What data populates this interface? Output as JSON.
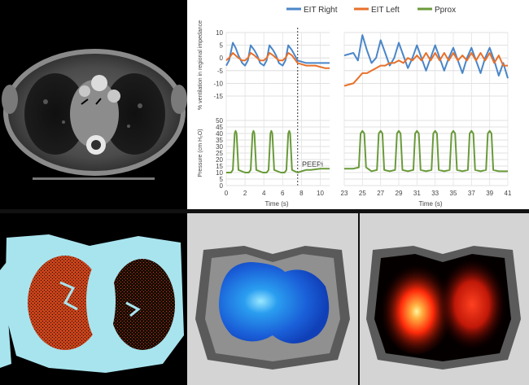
{
  "chart_data": [
    {
      "type": "line",
      "panel": "top-left",
      "ylabel": "% ventilation in regional impedance",
      "ylim": [
        -15,
        10
      ],
      "yticks": [
        -15,
        -10,
        -5,
        0,
        5,
        10
      ],
      "xlim": [
        0,
        11
      ],
      "vertical_line_x": 7.6,
      "series": [
        {
          "name": "EIT Right",
          "color": "#4a86c8",
          "x": [
            0,
            0.3,
            0.7,
            1.0,
            1.3,
            1.7,
            2.0,
            2.3,
            2.6,
            3.0,
            3.3,
            3.6,
            4.0,
            4.3,
            4.6,
            5.0,
            5.3,
            5.6,
            6.0,
            6.3,
            6.6,
            7.0,
            7.6,
            8.5,
            9.5,
            10.5,
            11.0
          ],
          "y": [
            -3,
            -1,
            6,
            4,
            1,
            -2,
            -3,
            -1,
            5,
            3,
            1,
            -2,
            -3,
            -1,
            5,
            3,
            1,
            -2,
            -3,
            -1,
            5,
            3,
            -1,
            -2,
            -2,
            -2,
            -2
          ]
        },
        {
          "name": "EIT Left",
          "color": "#e8702a",
          "x": [
            0,
            0.3,
            0.7,
            1.0,
            1.3,
            1.7,
            2.0,
            2.3,
            2.6,
            3.0,
            3.3,
            3.6,
            4.0,
            4.3,
            4.6,
            5.0,
            5.3,
            5.6,
            6.0,
            6.3,
            6.6,
            7.0,
            7.6,
            8.5,
            9.5,
            10.5,
            11.0
          ],
          "y": [
            -1,
            0,
            2,
            1,
            0,
            -1,
            -1,
            0,
            2,
            1,
            0,
            -1,
            -1,
            0,
            2,
            1,
            0,
            -1,
            -1,
            0,
            2,
            1,
            -2,
            -3,
            -3,
            -4,
            -4
          ]
        }
      ]
    },
    {
      "type": "line",
      "panel": "top-right",
      "ylim": [
        -15,
        10
      ],
      "xlim": [
        23,
        41
      ],
      "series": [
        {
          "name": "EIT Right",
          "color": "#4a86c8",
          "x": [
            23,
            24,
            24.5,
            25,
            25.5,
            26,
            26.5,
            27,
            27.5,
            28,
            28.5,
            29,
            29.5,
            30,
            30.5,
            31,
            31.5,
            32,
            32.5,
            33,
            33.5,
            34,
            34.5,
            35,
            35.5,
            36,
            36.5,
            37,
            37.5,
            38,
            38.5,
            39,
            39.5,
            40,
            40.5,
            41
          ],
          "y": [
            1,
            2,
            -1,
            9,
            3,
            -2,
            0,
            7,
            2,
            -3,
            0,
            6,
            1,
            -4,
            0,
            5,
            0,
            -5,
            0,
            5,
            0,
            -5,
            0,
            4,
            -1,
            -6,
            0,
            4,
            -1,
            -6,
            0,
            4,
            -1,
            -7,
            -2,
            -8
          ]
        },
        {
          "name": "EIT Left",
          "color": "#e8702a",
          "x": [
            23,
            24,
            24.5,
            25,
            25.5,
            26,
            26.5,
            27,
            27.5,
            28,
            28.5,
            29,
            29.5,
            30,
            30.5,
            31,
            31.5,
            32,
            32.5,
            33,
            33.5,
            34,
            34.5,
            35,
            35.5,
            36,
            36.5,
            37,
            37.5,
            38,
            38.5,
            39,
            39.5,
            40,
            40.5,
            41
          ],
          "y": [
            -11,
            -10,
            -8,
            -6,
            -6,
            -5,
            -4,
            -3,
            -3,
            -2,
            -2,
            -1,
            -2,
            0,
            -1,
            1,
            -1,
            2,
            -1,
            2,
            -1,
            2,
            -1,
            2,
            -1,
            1,
            -1,
            2,
            -1,
            2,
            -1,
            2,
            -2,
            1,
            -3,
            -3
          ]
        }
      ]
    },
    {
      "type": "line",
      "panel": "bottom-left",
      "ylabel": "Pressure (cm H₂O)",
      "ylim": [
        0,
        50
      ],
      "yticks": [
        0,
        5,
        10,
        15,
        20,
        25,
        30,
        35,
        40,
        45,
        50
      ],
      "xlim": [
        0,
        11
      ],
      "xticks": [
        0,
        2,
        4,
        6,
        8,
        10
      ],
      "xlabel": "Time (s)",
      "annotation": "PEEPi",
      "series": [
        {
          "name": "Pprox",
          "color": "#6a9a3a",
          "x": [
            0,
            0.5,
            0.7,
            0.9,
            1.0,
            1.1,
            1.3,
            2.0,
            2.4,
            2.6,
            2.8,
            2.9,
            3.0,
            3.2,
            3.9,
            4.3,
            4.5,
            4.7,
            4.8,
            4.9,
            5.1,
            5.8,
            6.2,
            6.4,
            6.6,
            6.7,
            6.8,
            7.0,
            7.6,
            8.0,
            8.5,
            9.0,
            10.0,
            11.0
          ],
          "y": [
            10,
            10,
            12,
            40,
            42,
            40,
            12,
            10,
            10,
            12,
            40,
            42,
            40,
            12,
            10,
            10,
            12,
            40,
            42,
            40,
            12,
            10,
            10,
            12,
            40,
            42,
            40,
            12,
            10,
            11,
            12,
            12,
            13,
            13
          ]
        }
      ]
    },
    {
      "type": "line",
      "panel": "bottom-right",
      "ylim": [
        0,
        50
      ],
      "xlim": [
        23,
        41
      ],
      "xticks": [
        23,
        25,
        27,
        29,
        31,
        33,
        35,
        37,
        39,
        41
      ],
      "xlabel": "Time (s)",
      "series": [
        {
          "name": "Pprox",
          "color": "#6a9a3a",
          "x": [
            23,
            24,
            24.6,
            24.8,
            25,
            25.2,
            25.4,
            26,
            26.6,
            26.8,
            27,
            27.2,
            27.4,
            28,
            28.6,
            28.8,
            29,
            29.2,
            29.4,
            30,
            30.6,
            30.8,
            31,
            31.2,
            31.4,
            32,
            32.6,
            32.8,
            33,
            33.2,
            33.4,
            34,
            34.6,
            34.8,
            35,
            35.2,
            35.4,
            36,
            36.6,
            36.8,
            37,
            37.2,
            37.4,
            38,
            38.6,
            38.8,
            39,
            39.2,
            39.4,
            40,
            40.5,
            41
          ],
          "y": [
            13,
            13,
            14,
            40,
            42,
            40,
            14,
            11,
            12,
            40,
            42,
            40,
            12,
            11,
            12,
            40,
            42,
            40,
            12,
            11,
            12,
            40,
            42,
            40,
            12,
            11,
            12,
            40,
            42,
            40,
            12,
            11,
            12,
            40,
            42,
            40,
            12,
            11,
            12,
            40,
            42,
            40,
            12,
            11,
            12,
            40,
            42,
            40,
            12,
            11,
            11,
            11
          ]
        }
      ]
    }
  ],
  "legend": [
    {
      "name": "EIT Right",
      "color": "#4a86c8"
    },
    {
      "name": "EIT Left",
      "color": "#e8702a"
    },
    {
      "name": "Pprox",
      "color": "#6a9a3a"
    }
  ],
  "ticks": {
    "y_top": [
      "10",
      "5",
      "0",
      "-5",
      "-10",
      "-15"
    ],
    "y_bottom": [
      "50",
      "45",
      "40",
      "35",
      "30",
      "25",
      "20",
      "15",
      "10",
      "5",
      "0"
    ],
    "x_left": [
      "0",
      "2",
      "4",
      "6",
      "8",
      "10"
    ],
    "x_right": [
      "23",
      "25",
      "27",
      "29",
      "31",
      "33",
      "35",
      "37",
      "39",
      "41"
    ]
  },
  "labels": {
    "ylabel_top": "% ventilation in regional impedance",
    "ylabel_bottom": "Pressure (cm H₂O)",
    "xlabel_left": "Time (s)",
    "xlabel_right": "Time (s)",
    "peepi": "PEEPi"
  },
  "colors": {
    "lung_segment": "#d2461a",
    "body_segment": "#a8e4ee",
    "eit_blue": "#2a8ee8",
    "eit_red": "#ff3010",
    "eit_outline": "#555555",
    "eit_body": "#909090"
  }
}
